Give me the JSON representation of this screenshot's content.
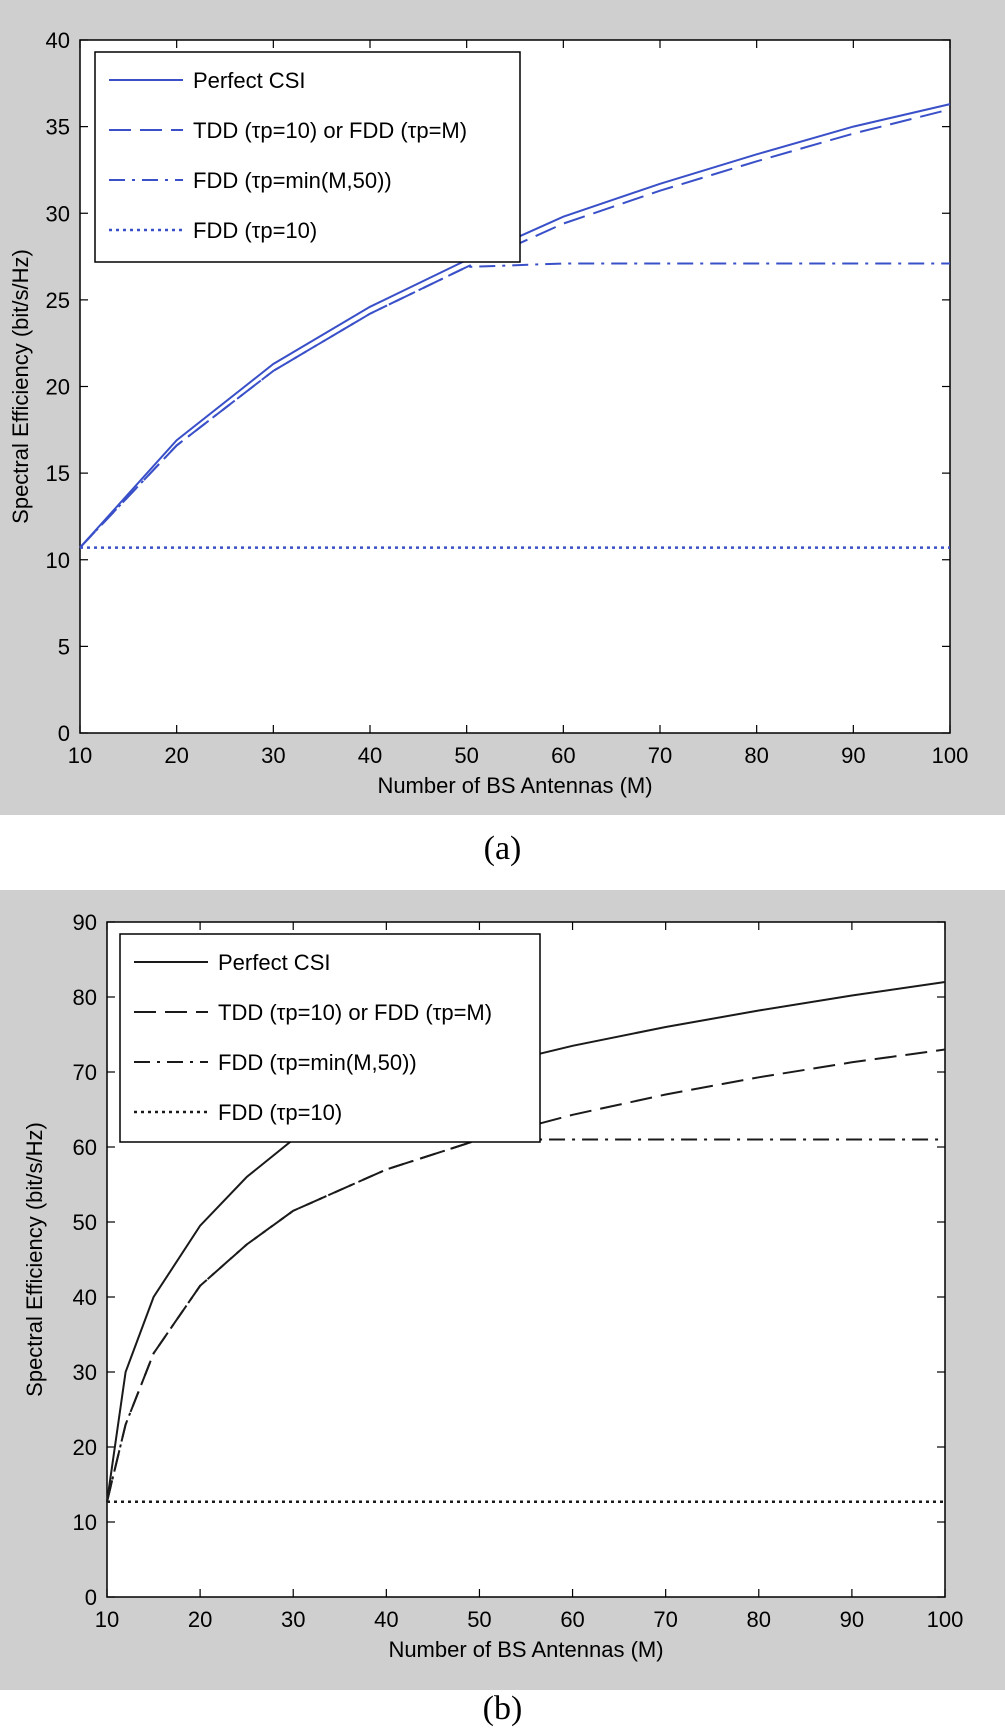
{
  "chart_data": [
    {
      "type": "line",
      "panel_label": "(a)",
      "xlabel": "Number of BS Antennas (M)",
      "ylabel": "Spectral Efficiency (bit/s/Hz)",
      "xlim": [
        10,
        100
      ],
      "ylim": [
        0,
        40
      ],
      "xticks": [
        10,
        20,
        30,
        40,
        50,
        60,
        70,
        80,
        90,
        100
      ],
      "yticks": [
        0,
        5,
        10,
        15,
        20,
        25,
        30,
        35,
        40
      ],
      "xtick_labels": [
        "10",
        "20",
        "30",
        "40",
        "50",
        "60",
        "70",
        "80",
        "90",
        "100"
      ],
      "ytick_labels": [
        "0",
        "5",
        "10",
        "15",
        "20",
        "25",
        "30",
        "35",
        "40"
      ],
      "grid": false,
      "legend_position": "top-left",
      "line_color": "#3a50c8",
      "x": [
        10,
        20,
        30,
        40,
        50,
        60,
        70,
        80,
        90,
        100
      ],
      "series": [
        {
          "name": "Perfect CSI",
          "style": "solid",
          "values": [
            10.7,
            16.9,
            21.3,
            24.6,
            27.3,
            29.8,
            31.7,
            33.4,
            35.0,
            36.3
          ]
        },
        {
          "name": "TDD (τp=10) or FDD (τp=M)",
          "style": "dash",
          "values": [
            10.7,
            16.6,
            20.9,
            24.2,
            26.9,
            29.4,
            31.3,
            33.0,
            34.6,
            36.0
          ]
        },
        {
          "name": "FDD (τp=min(M,50))",
          "style": "dashdot",
          "values": [
            10.7,
            16.6,
            20.9,
            24.2,
            26.9,
            27.1,
            27.1,
            27.1,
            27.1,
            27.1
          ]
        },
        {
          "name": "FDD (τp=10)",
          "style": "dot",
          "values": [
            10.7,
            10.7,
            10.7,
            10.7,
            10.7,
            10.7,
            10.7,
            10.7,
            10.7,
            10.7
          ]
        }
      ]
    },
    {
      "type": "line",
      "panel_label": "(b)",
      "xlabel": "Number of BS Antennas (M)",
      "ylabel": "Spectral Efficiency (bit/s/Hz)",
      "xlim": [
        10,
        100
      ],
      "ylim": [
        0,
        90
      ],
      "xticks": [
        10,
        20,
        30,
        40,
        50,
        60,
        70,
        80,
        90,
        100
      ],
      "yticks": [
        0,
        10,
        20,
        30,
        40,
        50,
        60,
        70,
        80,
        90
      ],
      "xtick_labels": [
        "10",
        "20",
        "30",
        "40",
        "50",
        "60",
        "70",
        "80",
        "90",
        "100"
      ],
      "ytick_labels": [
        "0",
        "10",
        "20",
        "30",
        "40",
        "50",
        "60",
        "70",
        "80",
        "90"
      ],
      "grid": false,
      "legend_position": "top-left",
      "line_color": "#1a1a1a",
      "x": [
        10,
        12,
        15,
        20,
        25,
        30,
        40,
        50,
        60,
        70,
        80,
        90,
        100
      ],
      "series": [
        {
          "name": "Perfect CSI",
          "style": "solid",
          "values": [
            12.7,
            30.0,
            40.0,
            49.5,
            56.0,
            61.0,
            66.7,
            70.5,
            73.5,
            76.0,
            78.2,
            80.2,
            82.0
          ]
        },
        {
          "name": "TDD (τp=10) or FDD (τp=M)",
          "style": "dash",
          "values": [
            12.7,
            23.0,
            32.5,
            41.5,
            47.0,
            51.5,
            57.0,
            61.0,
            64.3,
            67.0,
            69.3,
            71.3,
            73.0
          ]
        },
        {
          "name": "FDD (τp=min(M,50))",
          "style": "dashdot",
          "values": [
            12.7,
            23.0,
            32.5,
            41.5,
            47.0,
            51.5,
            57.0,
            61.0,
            61.0,
            61.0,
            61.0,
            61.0,
            61.0
          ]
        },
        {
          "name": "FDD (τp=10)",
          "style": "dot",
          "values": [
            12.7,
            12.7,
            12.7,
            12.7,
            12.7,
            12.7,
            12.7,
            12.7,
            12.7,
            12.7,
            12.7,
            12.7,
            12.7
          ]
        }
      ]
    }
  ]
}
